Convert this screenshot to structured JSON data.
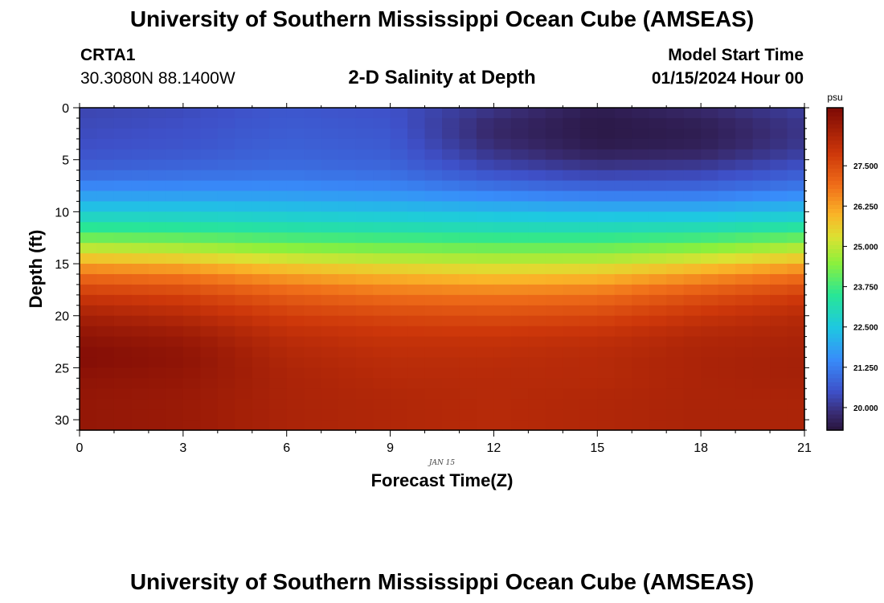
{
  "header": {
    "title": "University of Southern Mississippi Ocean Cube (AMSEAS)",
    "station": "CRTA1",
    "coordinates": "30.3080N  88.1400W",
    "subtitle": "2-D Salinity at Depth",
    "model_start_label": "Model Start Time",
    "model_start_value": "01/15/2024 Hour 00"
  },
  "footer": {
    "title": "University of Southern Mississippi Ocean Cube (AMSEAS)"
  },
  "chart_data": {
    "type": "heatmap",
    "title": "2-D Salinity at Depth",
    "xlabel": "Forecast Time(Z)",
    "ylabel": "Depth (ft)",
    "date_label": "JAN 15",
    "xlim": [
      0,
      21
    ],
    "ylim": [
      0,
      31
    ],
    "y_inverted": true,
    "xticks": [
      "0",
      "3",
      "6",
      "9",
      "12",
      "15",
      "18",
      "21"
    ],
    "xtick_values": [
      0,
      3,
      6,
      9,
      12,
      15,
      18,
      21
    ],
    "yticks": [
      "0",
      "5",
      "10",
      "15",
      "20",
      "25",
      "30"
    ],
    "ytick_values": [
      0,
      5,
      10,
      15,
      20,
      25,
      30
    ],
    "colorbar": {
      "unit": "psu",
      "min": 19.3,
      "max": 29.3,
      "ticks": [
        "20.000",
        "21.250",
        "22.500",
        "23.750",
        "25.000",
        "26.250",
        "27.500"
      ],
      "tick_values": [
        20.0,
        21.25,
        22.5,
        23.75,
        25.0,
        26.25,
        27.5
      ]
    },
    "grid": {
      "x_hours": [
        0,
        3,
        6,
        9,
        12,
        15,
        18,
        21
      ],
      "depths_ft": [
        0,
        2,
        4,
        6,
        8,
        10,
        12,
        14,
        16,
        18,
        20,
        22,
        24,
        26,
        28,
        30,
        31
      ],
      "salinity_psu": [
        [
          20.3,
          20.4,
          20.6,
          20.5,
          20.0,
          19.5,
          19.8,
          20.2
        ],
        [
          20.4,
          20.5,
          20.7,
          20.6,
          19.7,
          19.4,
          19.5,
          20.0
        ],
        [
          20.5,
          20.6,
          20.8,
          20.7,
          19.9,
          19.5,
          19.6,
          20.1
        ],
        [
          20.8,
          20.9,
          21.0,
          20.9,
          20.4,
          20.1,
          20.2,
          20.6
        ],
        [
          21.6,
          21.6,
          21.6,
          21.5,
          21.2,
          21.0,
          21.0,
          21.3
        ],
        [
          22.6,
          22.6,
          22.5,
          22.4,
          22.3,
          22.2,
          22.2,
          22.4
        ],
        [
          23.8,
          23.7,
          23.5,
          23.4,
          23.3,
          23.3,
          23.4,
          23.7
        ],
        [
          25.4,
          25.2,
          24.8,
          24.6,
          24.5,
          24.5,
          24.8,
          25.3
        ],
        [
          26.9,
          26.7,
          26.2,
          25.9,
          25.7,
          25.8,
          26.3,
          26.8
        ],
        [
          27.9,
          27.7,
          27.2,
          26.9,
          26.8,
          26.9,
          27.4,
          27.8
        ],
        [
          28.6,
          28.3,
          27.8,
          27.6,
          27.5,
          27.6,
          28.0,
          28.3
        ],
        [
          29.0,
          28.8,
          28.2,
          28.0,
          28.0,
          28.1,
          28.4,
          28.5
        ],
        [
          29.2,
          29.0,
          28.4,
          28.2,
          28.2,
          28.3,
          28.5,
          28.6
        ],
        [
          29.0,
          28.9,
          28.5,
          28.3,
          28.3,
          28.3,
          28.5,
          28.6
        ],
        [
          28.9,
          28.8,
          28.5,
          28.4,
          28.3,
          28.4,
          28.5,
          28.5
        ],
        [
          28.9,
          28.8,
          28.5,
          28.4,
          28.3,
          28.4,
          28.5,
          28.5
        ],
        [
          28.9,
          28.8,
          28.5,
          28.4,
          28.3,
          28.4,
          28.5,
          28.5
        ]
      ]
    }
  }
}
